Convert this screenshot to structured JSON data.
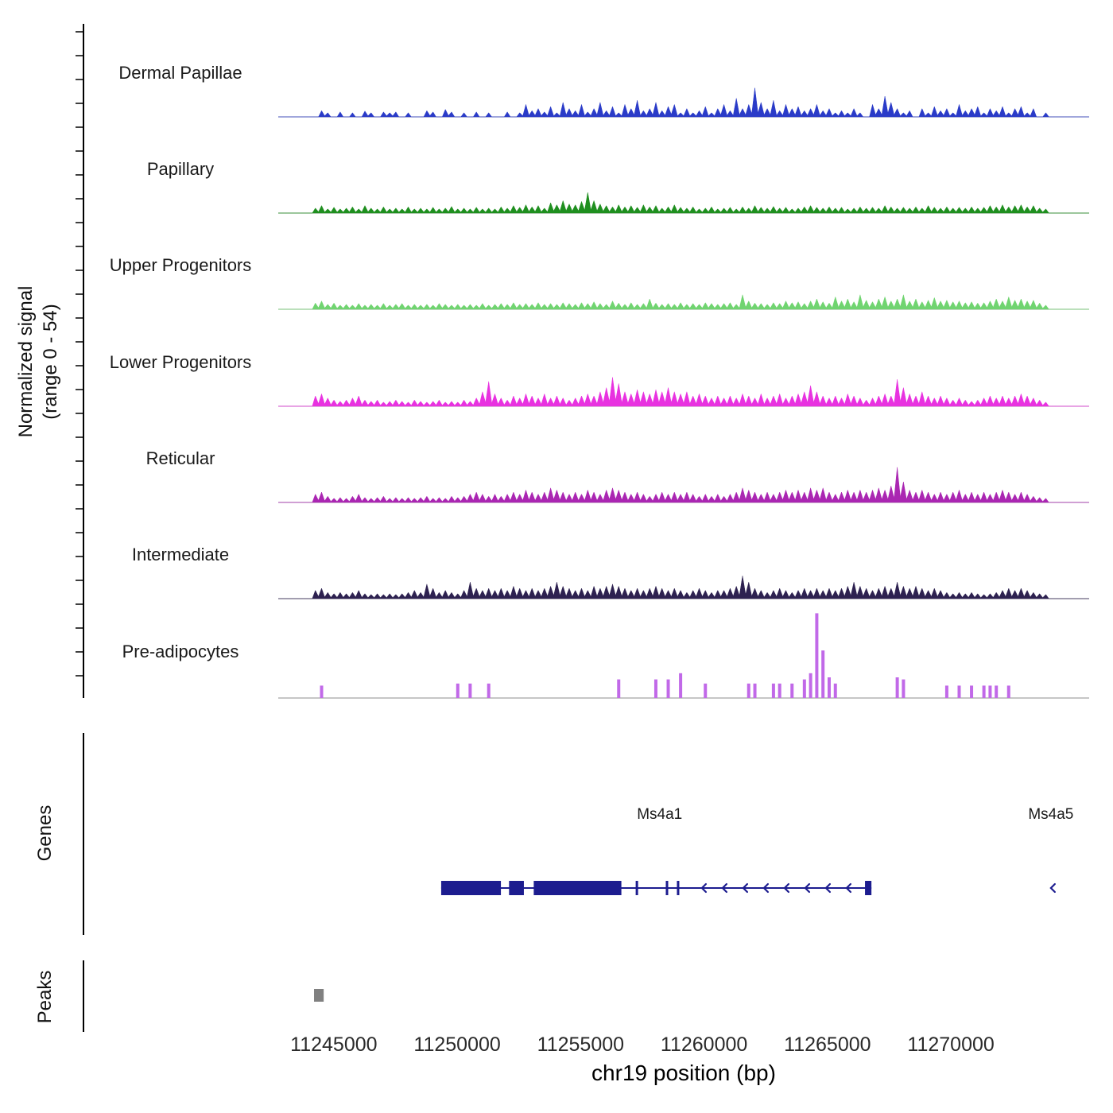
{
  "chart_data": {
    "type": "area",
    "title": "",
    "xlabel": "chr19 position (bp)",
    "ylabel": "Normalized signal (range 0 - 54)",
    "ylabel_line1": "Normalized signal",
    "ylabel_line2": "(range 0 - 54)",
    "chromosome": "chr19",
    "signal_range": [
      0,
      54
    ],
    "x_domain": [
      11242750,
      11275600
    ],
    "x_ticks": [
      11245000,
      11250000,
      11255000,
      11260000,
      11265000,
      11270000
    ],
    "genes_section_label": "Genes",
    "peaks_section_label": "Peaks",
    "colors": {
      "gene": "#1c1c8f",
      "peak": "#808080",
      "baseline": "#8c8c8c",
      "axis": "#000000"
    },
    "tracks": [
      {
        "label": "Dermal Papillae",
        "color": "#2a3bc8",
        "style": "area",
        "values": [
          0,
          0,
          0,
          0,
          0,
          0,
          0,
          0.15,
          0.1,
          0,
          0.12,
          0,
          0.1,
          0,
          0.14,
          0.1,
          0,
          0.12,
          0.1,
          0.12,
          0,
          0.1,
          0,
          0,
          0.15,
          0.12,
          0,
          0.18,
          0.12,
          0,
          0.1,
          0,
          0.12,
          0,
          0.1,
          0,
          0,
          0.12,
          0,
          0.1,
          0.3,
          0.15,
          0.2,
          0.12,
          0.25,
          0.1,
          0.35,
          0.2,
          0.15,
          0.3,
          0.12,
          0.2,
          0.35,
          0.15,
          0.25,
          0.1,
          0.3,
          0.2,
          0.4,
          0.15,
          0.2,
          0.35,
          0.15,
          0.25,
          0.3,
          0.1,
          0.2,
          0.1,
          0.15,
          0.25,
          0.1,
          0.2,
          0.3,
          0.15,
          0.45,
          0.2,
          0.3,
          0.7,
          0.35,
          0.2,
          0.4,
          0.15,
          0.3,
          0.2,
          0.25,
          0.15,
          0.2,
          0.3,
          0.15,
          0.2,
          0.1,
          0.15,
          0.1,
          0.2,
          0.1,
          0,
          0.3,
          0.2,
          0.5,
          0.35,
          0.2,
          0.1,
          0.15,
          0,
          0.2,
          0.1,
          0.25,
          0.15,
          0.2,
          0.1,
          0.3,
          0.15,
          0.2,
          0.25,
          0.1,
          0.2,
          0.15,
          0.25,
          0.1,
          0.2,
          0.25,
          0.1,
          0.2,
          0,
          0.1,
          0,
          0,
          0,
          0,
          0,
          0,
          0
        ]
      },
      {
        "label": "Papillary",
        "color": "#1f8f1f",
        "style": "area",
        "values": [
          0,
          0,
          0,
          0,
          0,
          0,
          0.12,
          0.18,
          0.1,
          0.14,
          0.1,
          0.12,
          0.15,
          0.1,
          0.18,
          0.12,
          0.1,
          0.15,
          0.1,
          0.12,
          0.1,
          0.15,
          0.1,
          0.12,
          0.1,
          0.14,
          0.1,
          0.12,
          0.16,
          0.1,
          0.12,
          0.1,
          0.14,
          0.1,
          0.12,
          0.1,
          0.15,
          0.12,
          0.18,
          0.14,
          0.2,
          0.15,
          0.18,
          0.12,
          0.25,
          0.2,
          0.3,
          0.22,
          0.2,
          0.28,
          0.5,
          0.3,
          0.22,
          0.18,
          0.15,
          0.2,
          0.15,
          0.18,
          0.14,
          0.2,
          0.15,
          0.18,
          0.12,
          0.15,
          0.2,
          0.14,
          0.12,
          0.15,
          0.1,
          0.12,
          0.15,
          0.1,
          0.12,
          0.14,
          0.1,
          0.15,
          0.12,
          0.18,
          0.14,
          0.12,
          0.16,
          0.12,
          0.14,
          0.1,
          0.12,
          0.15,
          0.18,
          0.14,
          0.12,
          0.15,
          0.12,
          0.14,
          0.1,
          0.12,
          0.15,
          0.12,
          0.14,
          0.12,
          0.18,
          0.15,
          0.12,
          0.14,
          0.12,
          0.15,
          0.12,
          0.18,
          0.14,
          0.12,
          0.15,
          0.12,
          0.14,
          0.12,
          0.15,
          0.12,
          0.14,
          0.18,
          0.15,
          0.2,
          0.15,
          0.18,
          0.2,
          0.15,
          0.18,
          0.12,
          0.1,
          0,
          0,
          0,
          0,
          0,
          0,
          0
        ]
      },
      {
        "label": "Upper Progenitors",
        "color": "#70d470",
        "style": "area",
        "values": [
          0,
          0,
          0,
          0,
          0,
          0,
          0.15,
          0.2,
          0.12,
          0.15,
          0.1,
          0.12,
          0.1,
          0.14,
          0.1,
          0.12,
          0.1,
          0.14,
          0.1,
          0.12,
          0.14,
          0.1,
          0.12,
          0.1,
          0.12,
          0.1,
          0.14,
          0.12,
          0.1,
          0.12,
          0.1,
          0.12,
          0.1,
          0.14,
          0.1,
          0.12,
          0.14,
          0.12,
          0.16,
          0.12,
          0.14,
          0.12,
          0.16,
          0.12,
          0.14,
          0.12,
          0.16,
          0.14,
          0.12,
          0.16,
          0.14,
          0.18,
          0.14,
          0.12,
          0.2,
          0.15,
          0.12,
          0.16,
          0.12,
          0.14,
          0.25,
          0.15,
          0.12,
          0.14,
          0.12,
          0.16,
          0.12,
          0.14,
          0.12,
          0.16,
          0.14,
          0.12,
          0.14,
          0.16,
          0.12,
          0.35,
          0.2,
          0.15,
          0.14,
          0.12,
          0.16,
          0.14,
          0.2,
          0.16,
          0.18,
          0.14,
          0.2,
          0.25,
          0.18,
          0.15,
          0.3,
          0.2,
          0.25,
          0.18,
          0.35,
          0.22,
          0.18,
          0.25,
          0.3,
          0.2,
          0.25,
          0.35,
          0.2,
          0.25,
          0.18,
          0.22,
          0.28,
          0.2,
          0.22,
          0.18,
          0.2,
          0.16,
          0.18,
          0.15,
          0.16,
          0.2,
          0.25,
          0.2,
          0.3,
          0.22,
          0.25,
          0.2,
          0.22,
          0.15,
          0.1,
          0,
          0,
          0,
          0,
          0,
          0,
          0
        ]
      },
      {
        "label": "Lower Progenitors",
        "color": "#e832e0",
        "style": "area",
        "values": [
          0,
          0,
          0,
          0,
          0,
          0,
          0.25,
          0.3,
          0.2,
          0.15,
          0.12,
          0.15,
          0.2,
          0.25,
          0.15,
          0.12,
          0.15,
          0.1,
          0.12,
          0.15,
          0.12,
          0.1,
          0.15,
          0.12,
          0.1,
          0.12,
          0.15,
          0.1,
          0.12,
          0.1,
          0.15,
          0.12,
          0.2,
          0.35,
          0.6,
          0.3,
          0.2,
          0.15,
          0.25,
          0.2,
          0.3,
          0.25,
          0.2,
          0.3,
          0.2,
          0.25,
          0.2,
          0.15,
          0.2,
          0.25,
          0.3,
          0.25,
          0.35,
          0.45,
          0.7,
          0.55,
          0.35,
          0.3,
          0.4,
          0.35,
          0.3,
          0.4,
          0.35,
          0.45,
          0.35,
          0.3,
          0.35,
          0.25,
          0.3,
          0.25,
          0.2,
          0.25,
          0.2,
          0.25,
          0.2,
          0.3,
          0.25,
          0.2,
          0.3,
          0.2,
          0.25,
          0.3,
          0.2,
          0.25,
          0.3,
          0.35,
          0.5,
          0.35,
          0.25,
          0.2,
          0.25,
          0.2,
          0.3,
          0.25,
          0.2,
          0.15,
          0.2,
          0.25,
          0.3,
          0.25,
          0.65,
          0.45,
          0.3,
          0.25,
          0.35,
          0.25,
          0.2,
          0.25,
          0.2,
          0.15,
          0.2,
          0.15,
          0.12,
          0.15,
          0.2,
          0.25,
          0.2,
          0.25,
          0.2,
          0.25,
          0.3,
          0.25,
          0.2,
          0.15,
          0.1,
          0,
          0,
          0,
          0,
          0,
          0,
          0
        ]
      },
      {
        "label": "Reticular",
        "color": "#aa26b2",
        "style": "area",
        "values": [
          0,
          0,
          0,
          0,
          0,
          0,
          0.2,
          0.25,
          0.15,
          0.1,
          0.12,
          0.1,
          0.15,
          0.2,
          0.12,
          0.1,
          0.12,
          0.15,
          0.1,
          0.12,
          0.1,
          0.12,
          0.1,
          0.12,
          0.15,
          0.1,
          0.12,
          0.1,
          0.15,
          0.12,
          0.15,
          0.2,
          0.25,
          0.2,
          0.15,
          0.2,
          0.15,
          0.2,
          0.25,
          0.2,
          0.3,
          0.25,
          0.2,
          0.25,
          0.35,
          0.3,
          0.25,
          0.2,
          0.25,
          0.2,
          0.3,
          0.25,
          0.2,
          0.3,
          0.35,
          0.3,
          0.25,
          0.2,
          0.25,
          0.2,
          0.15,
          0.2,
          0.25,
          0.2,
          0.25,
          0.2,
          0.25,
          0.2,
          0.15,
          0.2,
          0.15,
          0.2,
          0.15,
          0.2,
          0.25,
          0.35,
          0.3,
          0.25,
          0.2,
          0.25,
          0.2,
          0.25,
          0.3,
          0.25,
          0.3,
          0.25,
          0.35,
          0.3,
          0.35,
          0.25,
          0.2,
          0.25,
          0.3,
          0.25,
          0.3,
          0.25,
          0.3,
          0.35,
          0.3,
          0.4,
          0.85,
          0.5,
          0.3,
          0.25,
          0.3,
          0.25,
          0.2,
          0.25,
          0.2,
          0.25,
          0.3,
          0.2,
          0.25,
          0.2,
          0.25,
          0.2,
          0.25,
          0.3,
          0.25,
          0.2,
          0.25,
          0.2,
          0.15,
          0.12,
          0.1,
          0,
          0,
          0,
          0,
          0,
          0,
          0
        ]
      },
      {
        "label": "Intermediate",
        "color": "#2d2150",
        "style": "area",
        "values": [
          0,
          0,
          0,
          0,
          0,
          0,
          0.2,
          0.25,
          0.15,
          0.12,
          0.15,
          0.12,
          0.15,
          0.2,
          0.12,
          0.1,
          0.12,
          0.1,
          0.12,
          0.1,
          0.12,
          0.15,
          0.2,
          0.15,
          0.35,
          0.25,
          0.15,
          0.2,
          0.15,
          0.12,
          0.2,
          0.4,
          0.25,
          0.2,
          0.25,
          0.2,
          0.25,
          0.2,
          0.3,
          0.25,
          0.2,
          0.25,
          0.2,
          0.25,
          0.3,
          0.4,
          0.3,
          0.25,
          0.2,
          0.25,
          0.2,
          0.3,
          0.25,
          0.3,
          0.35,
          0.3,
          0.25,
          0.2,
          0.25,
          0.2,
          0.25,
          0.3,
          0.25,
          0.2,
          0.25,
          0.2,
          0.15,
          0.2,
          0.25,
          0.2,
          0.15,
          0.2,
          0.2,
          0.25,
          0.3,
          0.55,
          0.4,
          0.25,
          0.2,
          0.15,
          0.2,
          0.25,
          0.2,
          0.15,
          0.2,
          0.25,
          0.2,
          0.25,
          0.2,
          0.25,
          0.2,
          0.25,
          0.3,
          0.4,
          0.3,
          0.25,
          0.2,
          0.25,
          0.3,
          0.25,
          0.4,
          0.3,
          0.25,
          0.3,
          0.25,
          0.2,
          0.25,
          0.2,
          0.15,
          0.12,
          0.15,
          0.12,
          0.15,
          0.12,
          0.1,
          0.12,
          0.15,
          0.2,
          0.25,
          0.2,
          0.25,
          0.2,
          0.15,
          0.12,
          0.1,
          0,
          0,
          0,
          0,
          0,
          0,
          0
        ]
      },
      {
        "label": "Pre-adipocytes",
        "color": "#c169e8",
        "style": "bars",
        "values": [
          0,
          0,
          0,
          0,
          0,
          0,
          0,
          0.3,
          0,
          0,
          0,
          0,
          0,
          0,
          0,
          0,
          0,
          0,
          0,
          0,
          0,
          0,
          0,
          0,
          0,
          0,
          0,
          0,
          0,
          0.35,
          0,
          0.35,
          0,
          0,
          0.35,
          0,
          0,
          0,
          0,
          0,
          0,
          0,
          0,
          0,
          0,
          0,
          0,
          0,
          0,
          0,
          0,
          0,
          0,
          0,
          0,
          0.45,
          0,
          0,
          0,
          0,
          0,
          0.45,
          0,
          0.45,
          0,
          0.6,
          0,
          0,
          0,
          0.35,
          0,
          0,
          0,
          0,
          0,
          0,
          0.35,
          0.35,
          0,
          0,
          0.35,
          0.35,
          0,
          0.35,
          0,
          0.45,
          0.6,
          2.05,
          1.15,
          0.5,
          0.35,
          0,
          0,
          0,
          0,
          0,
          0,
          0,
          0,
          0,
          0.5,
          0.45,
          0,
          0,
          0,
          0,
          0,
          0,
          0.3,
          0,
          0.3,
          0,
          0.3,
          0,
          0.3,
          0.3,
          0.3,
          0,
          0.3,
          0,
          0,
          0,
          0,
          0,
          0,
          0,
          0,
          0,
          0,
          0,
          0,
          0
        ]
      }
    ],
    "genes": [
      {
        "name": "Ms4a1",
        "strand": "-",
        "start": 11249350,
        "end": 11266780,
        "label_bp": 11258200,
        "exons": [
          [
            11249350,
            11251770
          ],
          [
            11252100,
            11252700
          ],
          [
            11253100,
            11256650
          ],
          [
            11266520,
            11266780
          ]
        ],
        "thin_exons": [
          [
            11257230,
            11257330
          ],
          [
            11258450,
            11258550
          ],
          [
            11258900,
            11259000
          ]
        ],
        "arrow_only": false
      },
      {
        "name": "Ms4a5",
        "strand": "-",
        "start": 11274000,
        "end": 11274150,
        "label_bp": 11274050,
        "exons": [],
        "thin_exons": [],
        "arrow_only": true
      }
    ],
    "peaks": [
      [
        11244200,
        11244590
      ]
    ]
  }
}
